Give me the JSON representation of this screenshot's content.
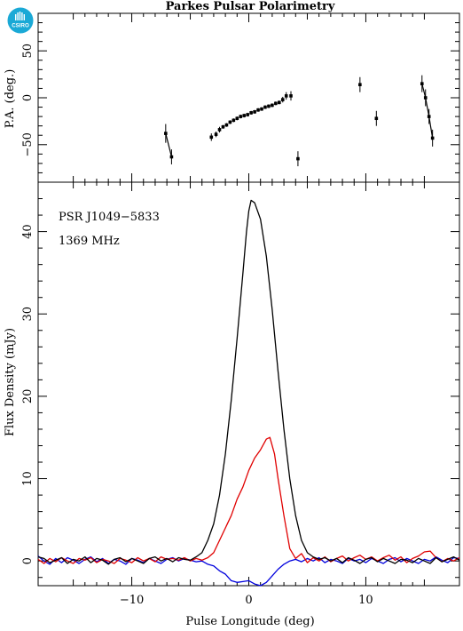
{
  "figure": {
    "title": "Parkes Pulsar Polarimetry",
    "logo_text": "CSIRO",
    "colors": {
      "logo": "#1aa9d6",
      "total": "#000000",
      "linear": "#e00000",
      "circular": "#0000dd"
    }
  },
  "chart_data": [
    {
      "type": "scatter",
      "panel": "position-angle",
      "ylabel": "P.A. (deg.)",
      "xlim": [
        -18,
        18
      ],
      "ylim": [
        -90,
        90
      ],
      "yticks": [
        -50,
        0,
        50
      ],
      "grid": false,
      "points": [
        {
          "x": -7.1,
          "y": -38,
          "err": 10
        },
        {
          "x": -6.6,
          "y": -63,
          "err": 8
        },
        {
          "x": -3.2,
          "y": -42,
          "err": 4
        },
        {
          "x": -2.8,
          "y": -39,
          "err": 3
        },
        {
          "x": -2.5,
          "y": -34,
          "err": 3
        },
        {
          "x": -2.2,
          "y": -31,
          "err": 2
        },
        {
          "x": -1.9,
          "y": -29,
          "err": 2
        },
        {
          "x": -1.6,
          "y": -26,
          "err": 2
        },
        {
          "x": -1.3,
          "y": -24,
          "err": 2
        },
        {
          "x": -1.0,
          "y": -22,
          "err": 2
        },
        {
          "x": -0.7,
          "y": -20,
          "err": 2
        },
        {
          "x": -0.4,
          "y": -19,
          "err": 2
        },
        {
          "x": -0.1,
          "y": -18,
          "err": 2
        },
        {
          "x": 0.2,
          "y": -16,
          "err": 2
        },
        {
          "x": 0.5,
          "y": -15,
          "err": 2
        },
        {
          "x": 0.8,
          "y": -13,
          "err": 2
        },
        {
          "x": 1.1,
          "y": -12,
          "err": 2
        },
        {
          "x": 1.4,
          "y": -10,
          "err": 2
        },
        {
          "x": 1.7,
          "y": -9,
          "err": 2
        },
        {
          "x": 2.0,
          "y": -8,
          "err": 2
        },
        {
          "x": 2.3,
          "y": -6,
          "err": 2
        },
        {
          "x": 2.6,
          "y": -5,
          "err": 2
        },
        {
          "x": 2.9,
          "y": -2,
          "err": 3
        },
        {
          "x": 3.2,
          "y": 2,
          "err": 4
        },
        {
          "x": 3.6,
          "y": 2,
          "err": 5
        },
        {
          "x": 4.2,
          "y": -65,
          "err": 8
        },
        {
          "x": 9.5,
          "y": 14,
          "err": 8
        },
        {
          "x": 10.9,
          "y": -22,
          "err": 8
        },
        {
          "x": 14.8,
          "y": 15,
          "err": 9
        },
        {
          "x": 15.1,
          "y": 0,
          "err": 9
        },
        {
          "x": 15.4,
          "y": -20,
          "err": 8
        },
        {
          "x": 15.7,
          "y": -43,
          "err": 9
        }
      ],
      "segments": [
        [
          0,
          1
        ],
        [
          28,
          29
        ],
        [
          29,
          30
        ],
        [
          30,
          31
        ]
      ]
    },
    {
      "type": "line",
      "panel": "profile",
      "xlabel": "Pulse Longitude (deg)",
      "ylabel": "Flux Density (mJy)",
      "xlim": [
        -18,
        18
      ],
      "ylim": [
        -3,
        46
      ],
      "xticks": [
        -10,
        0,
        10
      ],
      "yticks": [
        0,
        10,
        20,
        30,
        40
      ],
      "grid": false,
      "annotations": [
        "PSR J1049−5833",
        "1369 MHz"
      ],
      "series": [
        {
          "role": "total",
          "points": [
            [
              -18,
              0.5
            ],
            [
              -17.5,
              0.3
            ],
            [
              -17,
              -0.2
            ],
            [
              -16.5,
              0.1
            ],
            [
              -16,
              0.4
            ],
            [
              -15.5,
              -0.3
            ],
            [
              -15,
              0.2
            ],
            [
              -14.5,
              0.0
            ],
            [
              -14,
              0.5
            ],
            [
              -13.5,
              -0.2
            ],
            [
              -13,
              0.3
            ],
            [
              -12.5,
              0.1
            ],
            [
              -12,
              -0.4
            ],
            [
              -11.5,
              0.2
            ],
            [
              -11,
              0.4
            ],
            [
              -10.5,
              -0.1
            ],
            [
              -10,
              0.3
            ],
            [
              -9.5,
              0.0
            ],
            [
              -9,
              -0.3
            ],
            [
              -8.5,
              0.3
            ],
            [
              -8,
              0.5
            ],
            [
              -7.5,
              0.0
            ],
            [
              -7,
              0.3
            ],
            [
              -6.5,
              -0.1
            ],
            [
              -6,
              0.4
            ],
            [
              -5.5,
              0.2
            ],
            [
              -5,
              0.1
            ],
            [
              -4.5,
              0.5
            ],
            [
              -4,
              1.0
            ],
            [
              -3.5,
              2.5
            ],
            [
              -3,
              4.5
            ],
            [
              -2.5,
              8.0
            ],
            [
              -2,
              13.0
            ],
            [
              -1.5,
              19.5
            ],
            [
              -1,
              27.0
            ],
            [
              -0.5,
              35.0
            ],
            [
              -0.2,
              40.0
            ],
            [
              0,
              42.5
            ],
            [
              0.2,
              43.8
            ],
            [
              0.5,
              43.5
            ],
            [
              1,
              41.5
            ],
            [
              1.5,
              37.0
            ],
            [
              2,
              30.5
            ],
            [
              2.5,
              23.0
            ],
            [
              3,
              16.0
            ],
            [
              3.5,
              10.0
            ],
            [
              4,
              5.5
            ],
            [
              4.5,
              2.5
            ],
            [
              5,
              1.0
            ],
            [
              5.5,
              0.5
            ],
            [
              6,
              0.2
            ],
            [
              6.5,
              0.4
            ],
            [
              7,
              0.0
            ],
            [
              7.5,
              0.3
            ],
            [
              8,
              -0.2
            ],
            [
              8.5,
              0.4
            ],
            [
              9,
              0.1
            ],
            [
              9.5,
              -0.3
            ],
            [
              10,
              0.2
            ],
            [
              10.5,
              0.4
            ],
            [
              11,
              -0.1
            ],
            [
              11.5,
              0.3
            ],
            [
              12,
              0.0
            ],
            [
              12.5,
              -0.3
            ],
            [
              13,
              0.2
            ],
            [
              13.5,
              0.1
            ],
            [
              14,
              -0.2
            ],
            [
              14.5,
              0.3
            ],
            [
              15,
              0.0
            ],
            [
              15.5,
              -0.3
            ],
            [
              16,
              0.4
            ],
            [
              16.5,
              -0.1
            ],
            [
              17,
              0.2
            ],
            [
              17.5,
              0.5
            ],
            [
              18,
              0.1
            ]
          ]
        },
        {
          "role": "linear",
          "points": [
            [
              -18,
              0.2
            ],
            [
              -17.5,
              -0.3
            ],
            [
              -17,
              0.3
            ],
            [
              -16.5,
              -0.1
            ],
            [
              -16,
              0.4
            ],
            [
              -15.5,
              0.0
            ],
            [
              -15,
              -0.3
            ],
            [
              -14.5,
              0.3
            ],
            [
              -14,
              0.1
            ],
            [
              -13.5,
              0.4
            ],
            [
              -13,
              -0.2
            ],
            [
              -12.5,
              0.2
            ],
            [
              -12,
              0.0
            ],
            [
              -11.5,
              -0.3
            ],
            [
              -11,
              0.3
            ],
            [
              -10.5,
              0.1
            ],
            [
              -10,
              -0.2
            ],
            [
              -9.5,
              0.4
            ],
            [
              -9,
              0.0
            ],
            [
              -8.5,
              0.3
            ],
            [
              -8,
              -0.1
            ],
            [
              -7.5,
              0.5
            ],
            [
              -7,
              0.2
            ],
            [
              -6.5,
              0.3
            ],
            [
              -6,
              0.1
            ],
            [
              -5.5,
              0.4
            ],
            [
              -5,
              0.0
            ],
            [
              -4.5,
              0.3
            ],
            [
              -4,
              0.1
            ],
            [
              -3.5,
              0.4
            ],
            [
              -3,
              1.0
            ],
            [
              -2.5,
              2.5
            ],
            [
              -2,
              4.0
            ],
            [
              -1.5,
              5.5
            ],
            [
              -1,
              7.5
            ],
            [
              -0.5,
              9.0
            ],
            [
              0,
              11.0
            ],
            [
              0.5,
              12.5
            ],
            [
              1,
              13.5
            ],
            [
              1.5,
              14.8
            ],
            [
              1.8,
              15.0
            ],
            [
              2.2,
              13.0
            ],
            [
              2.5,
              10.0
            ],
            [
              3,
              5.5
            ],
            [
              3.5,
              1.5
            ],
            [
              4,
              0.3
            ],
            [
              4.5,
              0.9
            ],
            [
              5,
              -0.2
            ],
            [
              5.5,
              0.4
            ],
            [
              6,
              0.0
            ],
            [
              6.5,
              0.5
            ],
            [
              7,
              -0.1
            ],
            [
              7.5,
              0.3
            ],
            [
              8,
              0.6
            ],
            [
              8.5,
              0.0
            ],
            [
              9,
              0.4
            ],
            [
              9.5,
              0.7
            ],
            [
              10,
              0.2
            ],
            [
              10.5,
              0.5
            ],
            [
              11,
              0.0
            ],
            [
              11.5,
              0.4
            ],
            [
              12,
              0.7
            ],
            [
              12.5,
              0.1
            ],
            [
              13,
              0.5
            ],
            [
              13.5,
              -0.2
            ],
            [
              14,
              0.3
            ],
            [
              14.5,
              0.6
            ],
            [
              15,
              1.1
            ],
            [
              15.5,
              1.2
            ],
            [
              16,
              0.4
            ],
            [
              16.5,
              -0.1
            ],
            [
              17,
              0.3
            ],
            [
              17.5,
              0.0
            ],
            [
              18,
              0.4
            ]
          ]
        },
        {
          "role": "circular",
          "points": [
            [
              -18,
              0.6
            ],
            [
              -17.5,
              0.0
            ],
            [
              -17,
              -0.4
            ],
            [
              -16.5,
              0.3
            ],
            [
              -16,
              -0.2
            ],
            [
              -15.5,
              0.4
            ],
            [
              -15,
              0.1
            ],
            [
              -14.5,
              -0.3
            ],
            [
              -14,
              0.2
            ],
            [
              -13.5,
              0.5
            ],
            [
              -13,
              -0.1
            ],
            [
              -12.5,
              0.3
            ],
            [
              -12,
              -0.3
            ],
            [
              -11.5,
              0.2
            ],
            [
              -11,
              0.0
            ],
            [
              -10.5,
              -0.4
            ],
            [
              -10,
              0.3
            ],
            [
              -9.5,
              0.1
            ],
            [
              -9,
              -0.2
            ],
            [
              -8.5,
              0.3
            ],
            [
              -8,
              0.0
            ],
            [
              -7.5,
              -0.3
            ],
            [
              -7,
              0.2
            ],
            [
              -6.5,
              0.4
            ],
            [
              -6,
              0.0
            ],
            [
              -5.5,
              0.3
            ],
            [
              -5,
              0.1
            ],
            [
              -4.5,
              -0.1
            ],
            [
              -4,
              0.0
            ],
            [
              -3.5,
              -0.4
            ],
            [
              -3,
              -0.6
            ],
            [
              -2.5,
              -1.2
            ],
            [
              -2,
              -1.6
            ],
            [
              -1.5,
              -2.4
            ],
            [
              -1,
              -2.6
            ],
            [
              -0.5,
              -2.5
            ],
            [
              0,
              -2.4
            ],
            [
              0.5,
              -2.8
            ],
            [
              1,
              -3.0
            ],
            [
              1.5,
              -2.6
            ],
            [
              2,
              -1.8
            ],
            [
              2.5,
              -1.0
            ],
            [
              3,
              -0.4
            ],
            [
              3.5,
              0.0
            ],
            [
              4,
              0.2
            ],
            [
              4.5,
              -0.1
            ],
            [
              5,
              0.3
            ],
            [
              5.5,
              0.0
            ],
            [
              6,
              0.4
            ],
            [
              6.5,
              -0.2
            ],
            [
              7,
              0.2
            ],
            [
              7.5,
              0.0
            ],
            [
              8,
              -0.3
            ],
            [
              8.5,
              0.3
            ],
            [
              9,
              0.0
            ],
            [
              9.5,
              0.2
            ],
            [
              10,
              -0.2
            ],
            [
              10.5,
              0.3
            ],
            [
              11,
              0.0
            ],
            [
              11.5,
              -0.3
            ],
            [
              12,
              0.2
            ],
            [
              12.5,
              0.4
            ],
            [
              13,
              -0.1
            ],
            [
              13.5,
              0.3
            ],
            [
              14,
              0.0
            ],
            [
              14.5,
              -0.3
            ],
            [
              15,
              0.2
            ],
            [
              15.5,
              0.0
            ],
            [
              16,
              0.5
            ],
            [
              16.5,
              0.1
            ],
            [
              17,
              -0.2
            ],
            [
              17.5,
              0.4
            ],
            [
              18,
              0.3
            ]
          ]
        }
      ]
    }
  ]
}
